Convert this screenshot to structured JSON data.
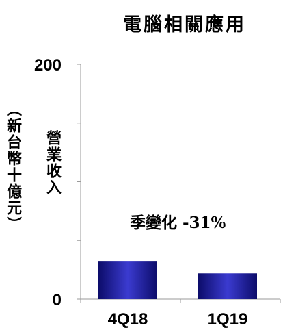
{
  "chart_data": {
    "type": "bar",
    "title": "電腦相關應用",
    "ylabel_line1": "（新台幣十億元）",
    "ylabel_line2": "營業收入",
    "categories": [
      "4Q18",
      "1Q19"
    ],
    "values": [
      32,
      22
    ],
    "ylim": [
      0,
      200
    ],
    "yticks": [
      "0",
      "200"
    ],
    "annotation": "季變化 -31%",
    "bar_color": "#1f1f9a",
    "grid": false
  }
}
